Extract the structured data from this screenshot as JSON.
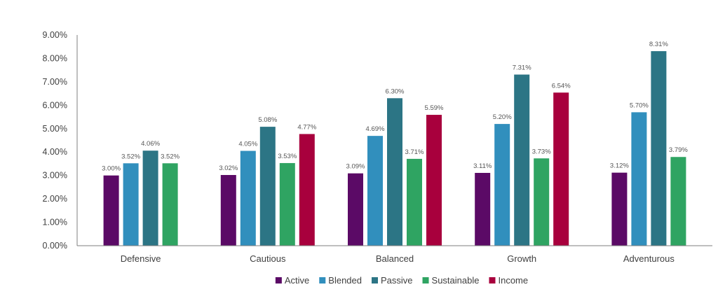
{
  "chart_data": {
    "type": "bar",
    "title": "",
    "xlabel": "",
    "ylabel": "",
    "categories": [
      "Defensive",
      "Cautious",
      "Balanced",
      "Growth",
      "Adventurous"
    ],
    "ylim": [
      0,
      9
    ],
    "yticks": [
      0,
      1,
      2,
      3,
      4,
      5,
      6,
      7,
      8,
      9
    ],
    "ytick_labels": [
      "0.00%",
      "1.00%",
      "2.00%",
      "3.00%",
      "4.00%",
      "5.00%",
      "6.00%",
      "7.00%",
      "8.00%",
      "9.00%"
    ],
    "grid": false,
    "legend_position": "bottom",
    "series": [
      {
        "name": "Active",
        "color": "#5b0a66",
        "values": [
          3.0,
          3.02,
          3.09,
          3.11,
          3.12
        ],
        "labels": [
          "3.00%",
          "3.02%",
          "3.09%",
          "3.11%",
          "3.12%"
        ]
      },
      {
        "name": "Blended",
        "color": "#318fbd",
        "values": [
          3.52,
          4.05,
          4.69,
          5.2,
          5.7
        ],
        "labels": [
          "3.52%",
          "4.05%",
          "4.69%",
          "5.20%",
          "5.70%"
        ]
      },
      {
        "name": "Passive",
        "color": "#2c7585",
        "values": [
          4.06,
          5.08,
          6.3,
          7.31,
          8.31
        ],
        "labels": [
          "4.06%",
          "5.08%",
          "6.30%",
          "7.31%",
          "8.31%"
        ]
      },
      {
        "name": "Sustainable",
        "color": "#2fa462",
        "values": [
          3.52,
          3.53,
          3.71,
          3.73,
          3.79
        ],
        "labels": [
          "3.52%",
          "3.53%",
          "3.71%",
          "3.73%",
          "3.79%"
        ]
      },
      {
        "name": "Income",
        "color": "#a8003d",
        "values": [
          null,
          4.77,
          5.59,
          6.54,
          null
        ],
        "labels": [
          null,
          "4.77%",
          "5.59%",
          "6.54%",
          null
        ]
      }
    ]
  }
}
